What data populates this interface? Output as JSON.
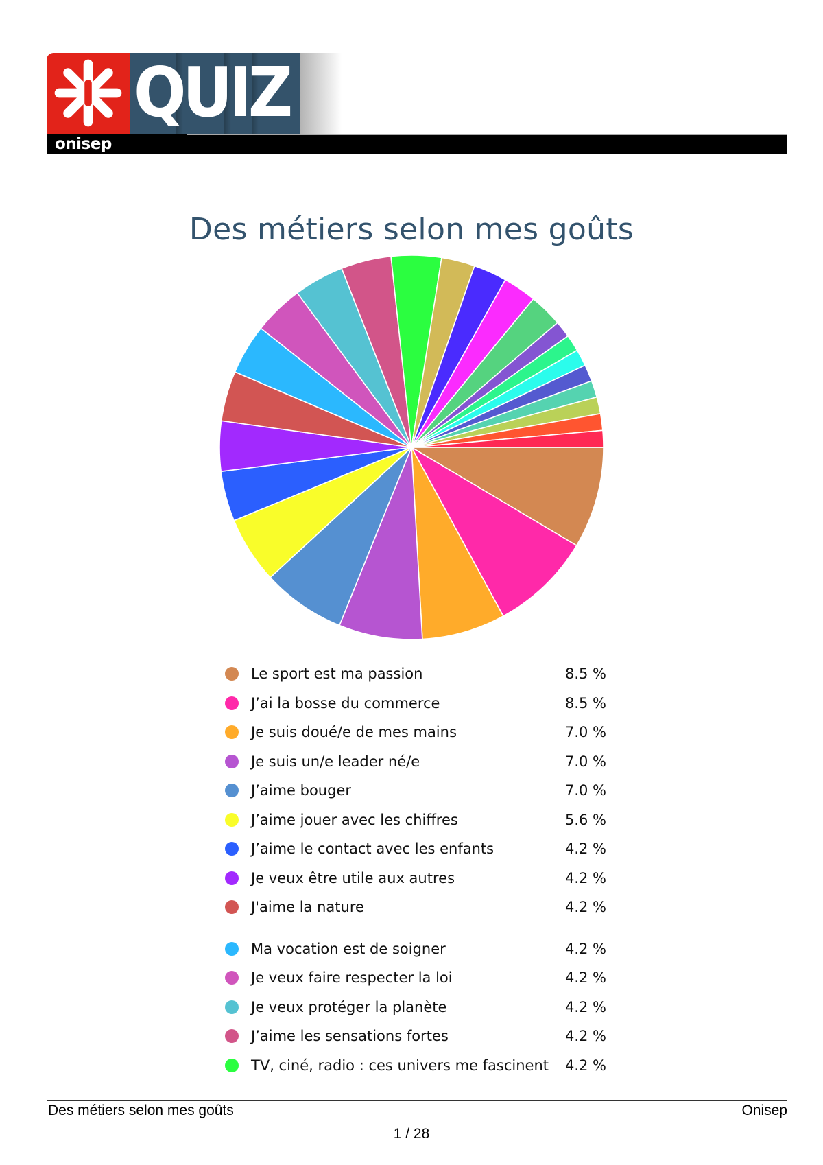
{
  "header": {
    "logo_word": "QUIZ",
    "logo_brand": "onisep",
    "logo_icon": "onisep-asterisk-icon",
    "colors": {
      "red": "#e2231a",
      "blue": "#34536b",
      "bar": "#000000"
    }
  },
  "page_title": "Des métiers selon mes goûts",
  "legend": [
    {
      "label": "Le sport est ma passion",
      "value": "8.5 %",
      "color": "#d38852"
    },
    {
      "label": "J’ai la bosse du commerce",
      "value": "8.5 %",
      "color": "#ff29a9"
    },
    {
      "label": "Je suis doué/e de mes mains",
      "value": "7.0 %",
      "color": "#ffab2a"
    },
    {
      "label": "Je suis un/e leader né/e",
      "value": "7.0 %",
      "color": "#b655d1"
    },
    {
      "label": "J’aime bouger",
      "value": "7.0 %",
      "color": "#5590d1"
    },
    {
      "label": "J’aime jouer avec les chiffres",
      "value": "5.6 %",
      "color": "#f9fd2a"
    },
    {
      "label": "J’aime le contact avec les enfants",
      "value": "4.2 %",
      "color": "#2b5ffe"
    },
    {
      "label": "Je veux être utile aux autres",
      "value": "4.2 %",
      "color": "#a229fe"
    },
    {
      "label": "J'aime la nature",
      "value": "4.2 %",
      "color": "#d25553"
    },
    {
      "label": "Ma vocation est de soigner",
      "value": "4.2 %",
      "color": "#2bb8fe"
    },
    {
      "label": "Je veux faire respecter la loi",
      "value": "4.2 %",
      "color": "#d055bc"
    },
    {
      "label": "Je veux protéger la planète",
      "value": "4.2 %",
      "color": "#55c2d2"
    },
    {
      "label": "J’aime les sensations fortes",
      "value": "4.2 %",
      "color": "#d25589"
    },
    {
      "label": "TV, ciné, radio : ces univers me fascinent",
      "value": "4.2 %",
      "color": "#2bfe40"
    }
  ],
  "chart_data": {
    "type": "pie",
    "title": "Des métiers selon mes goûts",
    "start_angle": "3 o'clock, clockwise",
    "legend_position": "below",
    "categories": [
      "Le sport est ma passion",
      "J’ai la bosse du commerce",
      "Je suis doué/e de mes mains",
      "Je suis un/e leader né/e",
      "J’aime bouger",
      "J’aime jouer avec les chiffres",
      "J’aime le contact avec les enfants",
      "Je veux être utile aux autres",
      "J'aime la nature",
      "Ma vocation est de soigner",
      "Je veux faire respecter la loi",
      "Je veux protéger la planète",
      "J’aime les sensations fortes",
      "TV, ciné, radio : ces univers me fascinent",
      "(unlabeled 15)",
      "(unlabeled 16)",
      "(unlabeled 17)",
      "(unlabeled 18)",
      "(unlabeled 19)",
      "(unlabeled 20)",
      "(unlabeled 21)",
      "(unlabeled 22)",
      "(unlabeled 23)",
      "(unlabeled 24)",
      "(unlabeled 25)",
      "(unlabeled 26)"
    ],
    "values": [
      8.5,
      8.5,
      7.0,
      7.0,
      7.0,
      5.6,
      4.2,
      4.2,
      4.2,
      4.2,
      4.2,
      4.2,
      4.2,
      4.2,
      2.8,
      2.8,
      2.8,
      2.8,
      1.4,
      1.4,
      1.4,
      1.4,
      1.4,
      1.4,
      1.4,
      1.4
    ],
    "colors": [
      "#d38852",
      "#ff29a9",
      "#ffab2a",
      "#b655d1",
      "#5590d1",
      "#f9fd2a",
      "#2b5ffe",
      "#a229fe",
      "#d25553",
      "#2bb8fe",
      "#d055bc",
      "#55c2d2",
      "#d25589",
      "#2bfe40",
      "#d2ba58",
      "#4a2bfe",
      "#fb2bfe",
      "#55d37f",
      "#8455d2",
      "#2cf58c",
      "#2bfcec",
      "#545ad0",
      "#55d3b0",
      "#bad158",
      "#ff5530",
      "#ff2954"
    ],
    "unit": "%"
  },
  "footer": {
    "left": "Des métiers selon mes goûts",
    "right": "Onisep",
    "page": "1 / 28"
  }
}
